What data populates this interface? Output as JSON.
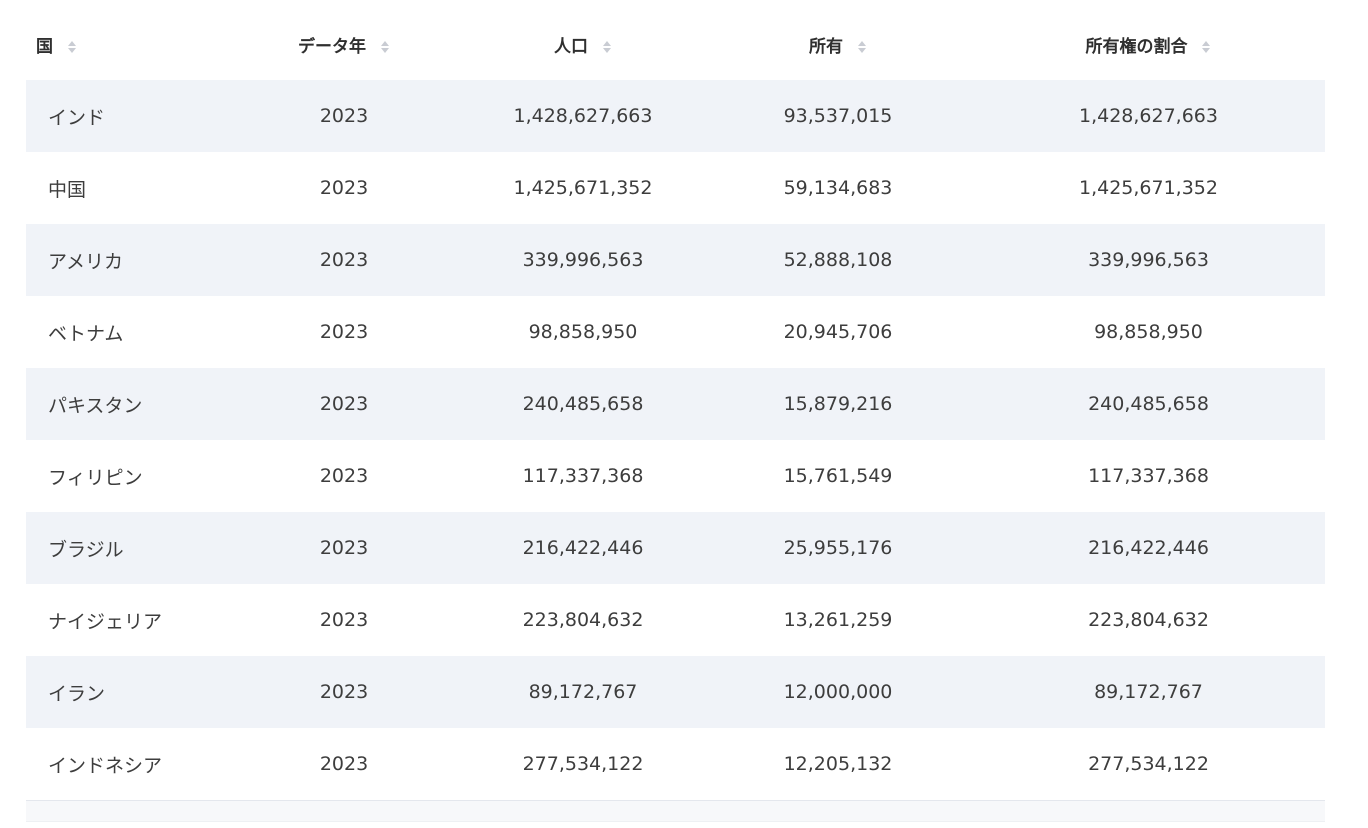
{
  "table": {
    "headers": {
      "country": "国",
      "year": "データ年",
      "population": "人口",
      "ownership": "所有",
      "share": "所有権の割合"
    },
    "rows": [
      {
        "country": "インド",
        "year": "2023",
        "population": "1,428,627,663",
        "ownership": "93,537,015",
        "share": "1,428,627,663"
      },
      {
        "country": "中国",
        "year": "2023",
        "population": "1,425,671,352",
        "ownership": "59,134,683",
        "share": "1,425,671,352"
      },
      {
        "country": "アメリカ",
        "year": "2023",
        "population": "339,996,563",
        "ownership": "52,888,108",
        "share": "339,996,563"
      },
      {
        "country": "ベトナム",
        "year": "2023",
        "population": "98,858,950",
        "ownership": "20,945,706",
        "share": "98,858,950"
      },
      {
        "country": "パキスタン",
        "year": "2023",
        "population": "240,485,658",
        "ownership": "15,879,216",
        "share": "240,485,658"
      },
      {
        "country": "フィリピン",
        "year": "2023",
        "population": "117,337,368",
        "ownership": "15,761,549",
        "share": "117,337,368"
      },
      {
        "country": "ブラジル",
        "year": "2023",
        "population": "216,422,446",
        "ownership": "25,955,176",
        "share": "216,422,446"
      },
      {
        "country": "ナイジェリア",
        "year": "2023",
        "population": "223,804,632",
        "ownership": "13,261,259",
        "share": "223,804,632"
      },
      {
        "country": "イラン",
        "year": "2023",
        "population": "89,172,767",
        "ownership": "12,000,000",
        "share": "89,172,767"
      },
      {
        "country": "インドネシア",
        "year": "2023",
        "population": "277,534,122",
        "ownership": "12,205,132",
        "share": "277,534,122"
      }
    ]
  },
  "colors": {
    "stripe": "#f0f3f8",
    "header_text": "#2f2f2f",
    "cell_text": "#3d3d3d",
    "sort_icon": "#c9ccd3"
  },
  "icons": {
    "sort": "sort-updown-icon"
  }
}
